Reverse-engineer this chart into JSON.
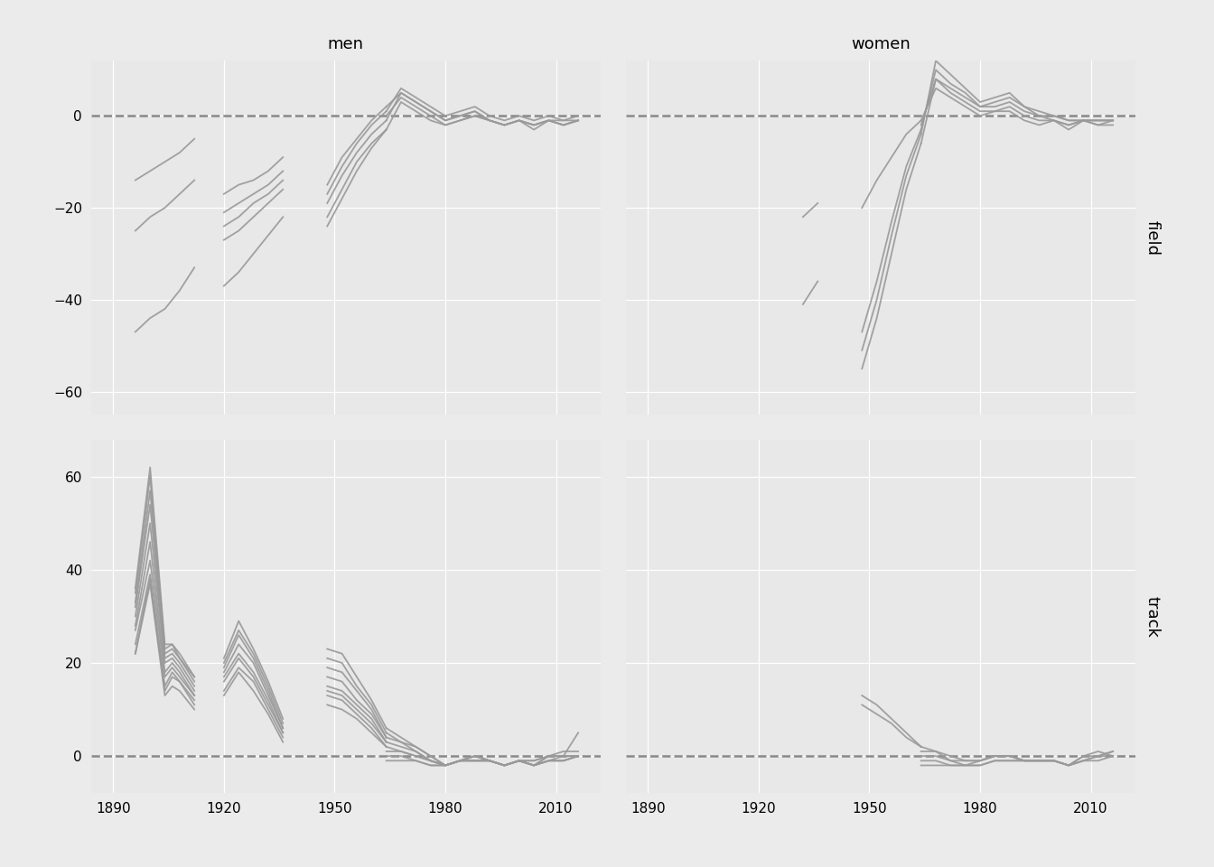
{
  "title_men": "men",
  "title_women": "women",
  "label_field": "field",
  "label_track": "track",
  "x_ticks": [
    1890,
    1920,
    1950,
    1980,
    2010
  ],
  "x_min": 1884,
  "x_max": 2022,
  "field_men_ylim": [
    -65,
    12
  ],
  "field_women_ylim": [
    -65,
    12
  ],
  "track_men_ylim": [
    -8,
    68
  ],
  "track_women_ylim": [
    -8,
    68
  ],
  "bg_color": "#EBEBEB",
  "panel_bg": "#E8E8E8",
  "strip_bg": "#D0D0D0",
  "line_color": "#999999",
  "dashed_color": "#888888",
  "line_width": 1.3,
  "men_field_series": [
    {
      "x": [
        1896,
        1900,
        1904,
        1908,
        1912
      ],
      "y": [
        -47,
        -44,
        -42,
        -38,
        -33
      ]
    },
    {
      "x": [
        1896,
        1900,
        1904,
        1908,
        1912
      ],
      "y": [
        -25,
        -22,
        -20,
        -17,
        -14
      ]
    },
    {
      "x": [
        1896,
        1900,
        1904,
        1908,
        1912
      ],
      "y": [
        -14,
        -12,
        -10,
        -8,
        -5
      ]
    },
    {
      "x": [
        1920,
        1924,
        1928,
        1932,
        1936
      ],
      "y": [
        -37,
        -34,
        -30,
        -26,
        -22
      ]
    },
    {
      "x": [
        1920,
        1924,
        1928,
        1932,
        1936
      ],
      "y": [
        -27,
        -25,
        -22,
        -19,
        -16
      ]
    },
    {
      "x": [
        1920,
        1924,
        1928,
        1932,
        1936
      ],
      "y": [
        -24,
        -22,
        -19,
        -17,
        -14
      ]
    },
    {
      "x": [
        1920,
        1924,
        1928,
        1932,
        1936
      ],
      "y": [
        -21,
        -19,
        -17,
        -15,
        -12
      ]
    },
    {
      "x": [
        1920,
        1924,
        1928,
        1932,
        1936
      ],
      "y": [
        -17,
        -15,
        -14,
        -12,
        -9
      ]
    },
    {
      "x": [
        1948,
        1952,
        1956,
        1960,
        1964
      ],
      "y": [
        -22,
        -16,
        -10,
        -6,
        -3
      ]
    },
    {
      "x": [
        1948,
        1952,
        1956,
        1960,
        1964
      ],
      "y": [
        -19,
        -13,
        -8,
        -4,
        -1
      ]
    },
    {
      "x": [
        1948,
        1952,
        1956,
        1960,
        1964
      ],
      "y": [
        -17,
        -11,
        -6,
        -2,
        1
      ]
    },
    {
      "x": [
        1948,
        1952,
        1956,
        1960,
        1964
      ],
      "y": [
        -15,
        -9,
        -5,
        -1,
        2
      ]
    },
    {
      "x": [
        1948,
        1952,
        1956,
        1960,
        1964
      ],
      "y": [
        -24,
        -18,
        -12,
        -7,
        -3
      ]
    },
    {
      "x": [
        1964,
        1968,
        1972,
        1976,
        1980,
        1984,
        1988,
        1992,
        1996,
        2000,
        2004,
        2008,
        2012,
        2016
      ],
      "y": [
        -3,
        3,
        1,
        -1,
        -2,
        -1,
        0,
        -1,
        -2,
        -1,
        -2,
        -1,
        -2,
        -1
      ]
    },
    {
      "x": [
        1964,
        1968,
        1972,
        1976,
        1980,
        1984,
        1988,
        1992,
        1996,
        2000,
        2004,
        2008,
        2012,
        2016
      ],
      "y": [
        -1,
        5,
        3,
        1,
        -1,
        0,
        1,
        -1,
        -2,
        -1,
        -2,
        -1,
        -2,
        -1
      ]
    },
    {
      "x": [
        1964,
        1968,
        1972,
        1976,
        1980,
        1984,
        1988,
        1992,
        1996,
        2000,
        2004,
        2008,
        2012,
        2016
      ],
      "y": [
        1,
        6,
        4,
        2,
        0,
        1,
        2,
        0,
        -1,
        0,
        -1,
        0,
        -1,
        0
      ]
    },
    {
      "x": [
        1964,
        1968,
        1972,
        1976,
        1980,
        1984,
        1988,
        1992,
        1996,
        2000,
        2004,
        2008,
        2012,
        2016
      ],
      "y": [
        2,
        5,
        3,
        1,
        -1,
        0,
        1,
        -1,
        -2,
        -1,
        -2,
        -1,
        -1,
        -1
      ]
    },
    {
      "x": [
        1964,
        1968,
        1972,
        1976,
        1980,
        1984,
        1988,
        1992,
        1996,
        2000,
        2004,
        2008,
        2012,
        2016
      ],
      "y": [
        0,
        4,
        2,
        0,
        -2,
        -1,
        0,
        -1,
        -2,
        -1,
        -3,
        -1,
        -2,
        -1
      ]
    }
  ],
  "women_field_series": [
    {
      "x": [
        1932,
        1936
      ],
      "y": [
        -22,
        -19
      ]
    },
    {
      "x": [
        1932,
        1936
      ],
      "y": [
        -41,
        -36
      ]
    },
    {
      "x": [
        1948,
        1952,
        1956,
        1960,
        1964
      ],
      "y": [
        -55,
        -44,
        -30,
        -16,
        -6
      ]
    },
    {
      "x": [
        1948,
        1952,
        1956,
        1960,
        1964
      ],
      "y": [
        -51,
        -40,
        -26,
        -13,
        -4
      ]
    },
    {
      "x": [
        1948,
        1952,
        1956,
        1960,
        1964
      ],
      "y": [
        -47,
        -36,
        -23,
        -11,
        -3
      ]
    },
    {
      "x": [
        1948,
        1952,
        1956,
        1960,
        1964
      ],
      "y": [
        -20,
        -14,
        -9,
        -4,
        -1
      ]
    },
    {
      "x": [
        1964,
        1968,
        1972,
        1976,
        1980,
        1984,
        1988,
        1992,
        1996,
        2000,
        2004,
        2008,
        2012,
        2016
      ],
      "y": [
        -6,
        8,
        6,
        4,
        2,
        3,
        4,
        2,
        0,
        0,
        -1,
        -1,
        -1,
        -1
      ]
    },
    {
      "x": [
        1964,
        1968,
        1972,
        1976,
        1980,
        1984,
        1988,
        1992,
        1996,
        2000,
        2004,
        2008,
        2012,
        2016
      ],
      "y": [
        -4,
        12,
        9,
        6,
        3,
        4,
        5,
        2,
        1,
        0,
        -1,
        -1,
        -1,
        -1
      ]
    },
    {
      "x": [
        1964,
        1968,
        1972,
        1976,
        1980,
        1984,
        1988,
        1992,
        1996,
        2000,
        2004,
        2008,
        2012,
        2016
      ],
      "y": [
        -3,
        10,
        7,
        5,
        2,
        2,
        3,
        1,
        0,
        -1,
        -2,
        -1,
        -1,
        -1
      ]
    },
    {
      "x": [
        1964,
        1968,
        1972,
        1976,
        1980,
        1984,
        1988,
        1992,
        1996,
        2000,
        2004,
        2008,
        2012,
        2016
      ],
      "y": [
        -2,
        8,
        5,
        3,
        1,
        1,
        2,
        0,
        -1,
        -1,
        -2,
        -1,
        -2,
        -1
      ]
    },
    {
      "x": [
        1964,
        1968,
        1972,
        1976,
        1980,
        1984,
        1988,
        1992,
        1996,
        2000,
        2004,
        2008,
        2012,
        2016
      ],
      "y": [
        -1,
        6,
        4,
        2,
        0,
        1,
        1,
        -1,
        -2,
        -1,
        -3,
        -1,
        -2,
        -2
      ]
    }
  ],
  "men_track_series": [
    {
      "x": [
        1896,
        1900,
        1904,
        1906,
        1908,
        1912
      ],
      "y": [
        22,
        38,
        14,
        17,
        16,
        11
      ]
    },
    {
      "x": [
        1896,
        1900,
        1904,
        1906,
        1908,
        1912
      ],
      "y": [
        22,
        37,
        13,
        15,
        14,
        10
      ]
    },
    {
      "x": [
        1896,
        1900,
        1904,
        1906,
        1908,
        1912
      ],
      "y": [
        24,
        39,
        15,
        18,
        16,
        12
      ]
    },
    {
      "x": [
        1896,
        1900,
        1904,
        1906,
        1908,
        1912
      ],
      "y": [
        27,
        42,
        17,
        19,
        17,
        13
      ]
    },
    {
      "x": [
        1896,
        1900,
        1904,
        1906,
        1908,
        1912
      ],
      "y": [
        28,
        46,
        18,
        20,
        18,
        13
      ]
    },
    {
      "x": [
        1896,
        1900,
        1904,
        1906,
        1908,
        1912
      ],
      "y": [
        30,
        50,
        20,
        21,
        19,
        14
      ]
    },
    {
      "x": [
        1896,
        1900,
        1904,
        1906,
        1908,
        1912
      ],
      "y": [
        32,
        54,
        21,
        22,
        20,
        15
      ]
    },
    {
      "x": [
        1896,
        1900,
        1904,
        1906,
        1908,
        1912
      ],
      "y": [
        33,
        57,
        22,
        23,
        21,
        16
      ]
    },
    {
      "x": [
        1896,
        1900,
        1904,
        1906,
        1908,
        1912
      ],
      "y": [
        35,
        60,
        23,
        24,
        21,
        17
      ]
    },
    {
      "x": [
        1896,
        1900,
        1904,
        1906,
        1908,
        1912
      ],
      "y": [
        36,
        62,
        24,
        24,
        22,
        17
      ]
    },
    {
      "x": [
        1920,
        1924,
        1928,
        1932,
        1936
      ],
      "y": [
        21,
        29,
        23,
        16,
        8
      ]
    },
    {
      "x": [
        1920,
        1924,
        1928,
        1932,
        1936
      ],
      "y": [
        20,
        27,
        22,
        15,
        7
      ]
    },
    {
      "x": [
        1920,
        1924,
        1928,
        1932,
        1936
      ],
      "y": [
        19,
        26,
        21,
        14,
        6
      ]
    },
    {
      "x": [
        1920,
        1924,
        1928,
        1932,
        1936
      ],
      "y": [
        18,
        24,
        20,
        13,
        6
      ]
    },
    {
      "x": [
        1920,
        1924,
        1928,
        1932,
        1936
      ],
      "y": [
        17,
        22,
        18,
        12,
        5
      ]
    },
    {
      "x": [
        1920,
        1924,
        1928,
        1932,
        1936
      ],
      "y": [
        16,
        21,
        17,
        11,
        5
      ]
    },
    {
      "x": [
        1920,
        1924,
        1928,
        1932,
        1936
      ],
      "y": [
        14,
        19,
        16,
        10,
        4
      ]
    },
    {
      "x": [
        1920,
        1924,
        1928,
        1932,
        1936
      ],
      "y": [
        13,
        18,
        14,
        9,
        3
      ]
    },
    {
      "x": [
        1948,
        1952,
        1956,
        1960,
        1964
      ],
      "y": [
        23,
        22,
        17,
        12,
        6
      ]
    },
    {
      "x": [
        1948,
        1952,
        1956,
        1960,
        1964
      ],
      "y": [
        21,
        20,
        15,
        11,
        5
      ]
    },
    {
      "x": [
        1948,
        1952,
        1956,
        1960,
        1964
      ],
      "y": [
        19,
        18,
        14,
        10,
        4
      ]
    },
    {
      "x": [
        1948,
        1952,
        1956,
        1960,
        1964
      ],
      "y": [
        17,
        16,
        12,
        9,
        4
      ]
    },
    {
      "x": [
        1948,
        1952,
        1956,
        1960,
        1964
      ],
      "y": [
        15,
        14,
        11,
        8,
        3
      ]
    },
    {
      "x": [
        1948,
        1952,
        1956,
        1960,
        1964
      ],
      "y": [
        14,
        13,
        10,
        7,
        3
      ]
    },
    {
      "x": [
        1948,
        1952,
        1956,
        1960,
        1964
      ],
      "y": [
        13,
        12,
        9,
        6,
        2
      ]
    },
    {
      "x": [
        1948,
        1952,
        1956,
        1960,
        1964
      ],
      "y": [
        11,
        10,
        8,
        5,
        2
      ]
    },
    {
      "x": [
        1964,
        1968,
        1972,
        1976,
        1980,
        1984,
        1988,
        1992,
        1996,
        2000,
        2004,
        2008,
        2012,
        2016
      ],
      "y": [
        6,
        4,
        2,
        0,
        -2,
        -1,
        0,
        -1,
        -2,
        -1,
        -1,
        0,
        0,
        5
      ]
    },
    {
      "x": [
        1964,
        1968,
        1972,
        1976,
        1980,
        1984,
        1988,
        1992,
        1996,
        2000,
        2004,
        2008,
        2012,
        2016
      ],
      "y": [
        5,
        3,
        2,
        0,
        -2,
        -1,
        0,
        -1,
        -2,
        -1,
        -2,
        0,
        1,
        1
      ]
    },
    {
      "x": [
        1964,
        1968,
        1972,
        1976,
        1980,
        1984,
        1988,
        1992,
        1996,
        2000,
        2004,
        2008,
        2012,
        2016
      ],
      "y": [
        4,
        3,
        1,
        -1,
        -2,
        -1,
        0,
        -1,
        -2,
        -1,
        -1,
        0,
        0,
        0
      ]
    },
    {
      "x": [
        1964,
        1968,
        1972,
        1976,
        1980,
        1984,
        1988,
        1992,
        1996,
        2000,
        2004,
        2008,
        2012,
        2016
      ],
      "y": [
        3,
        2,
        1,
        -1,
        -2,
        -1,
        0,
        -1,
        -2,
        -1,
        -2,
        0,
        0,
        0
      ]
    },
    {
      "x": [
        1964,
        1968,
        1972,
        1976,
        1980,
        1984,
        1988,
        1992,
        1996,
        2000,
        2004,
        2008,
        2012,
        2016
      ],
      "y": [
        2,
        1,
        0,
        -1,
        -2,
        -1,
        -1,
        -1,
        -2,
        -1,
        -2,
        -1,
        0,
        0
      ]
    },
    {
      "x": [
        1964,
        1968,
        1972,
        1976,
        1980,
        1984,
        1988,
        1992,
        1996,
        2000,
        2004,
        2008,
        2012,
        2016
      ],
      "y": [
        1,
        1,
        0,
        -1,
        -2,
        -1,
        -1,
        -1,
        -2,
        -1,
        -2,
        -1,
        -1,
        0
      ]
    },
    {
      "x": [
        1964,
        1968,
        1972,
        1976,
        1980,
        1984,
        1988,
        1992,
        1996,
        2000,
        2004,
        2008,
        2012,
        2016
      ],
      "y": [
        0,
        0,
        -1,
        -2,
        -2,
        -1,
        -1,
        -1,
        -2,
        -1,
        -2,
        -1,
        -1,
        0
      ]
    },
    {
      "x": [
        1964,
        1968,
        1972,
        1976,
        1980,
        1984,
        1988,
        1992,
        1996,
        2000,
        2004,
        2008,
        2012,
        2016
      ],
      "y": [
        -1,
        -1,
        -1,
        -2,
        -2,
        -1,
        -1,
        -1,
        -2,
        -1,
        -2,
        -1,
        -1,
        0
      ]
    }
  ],
  "women_track_series": [
    {
      "x": [
        1948,
        1952,
        1956,
        1960,
        1964
      ],
      "y": [
        13,
        11,
        8,
        5,
        2
      ]
    },
    {
      "x": [
        1948,
        1952,
        1956,
        1960,
        1964
      ],
      "y": [
        11,
        9,
        7,
        4,
        2
      ]
    },
    {
      "x": [
        1964,
        1968,
        1972,
        1976,
        1980,
        1984,
        1988,
        1992,
        1996,
        2000,
        2004,
        2008,
        2012,
        2016
      ],
      "y": [
        2,
        1,
        0,
        -1,
        -1,
        0,
        0,
        -1,
        -1,
        -1,
        -2,
        0,
        0,
        1
      ]
    },
    {
      "x": [
        1964,
        1968,
        1972,
        1976,
        1980,
        1984,
        1988,
        1992,
        1996,
        2000,
        2004,
        2008,
        2012,
        2016
      ],
      "y": [
        1,
        1,
        -1,
        -1,
        -1,
        0,
        0,
        -1,
        -1,
        -1,
        -2,
        0,
        1,
        0
      ]
    },
    {
      "x": [
        1964,
        1968,
        1972,
        1976,
        1980,
        1984,
        1988,
        1992,
        1996,
        2000,
        2004,
        2008,
        2012,
        2016
      ],
      "y": [
        0,
        0,
        -1,
        -2,
        -1,
        0,
        0,
        -1,
        -1,
        -1,
        -2,
        -1,
        0,
        0
      ]
    },
    {
      "x": [
        1964,
        1968,
        1972,
        1976,
        1980,
        1984,
        1988,
        1992,
        1996,
        2000,
        2004,
        2008,
        2012,
        2016
      ],
      "y": [
        -1,
        -1,
        -2,
        -2,
        -2,
        -1,
        -1,
        -1,
        -1,
        -1,
        -2,
        -1,
        0,
        1
      ]
    },
    {
      "x": [
        1964,
        1968,
        1972,
        1976,
        1980,
        1984,
        1988,
        1992,
        1996,
        2000,
        2004,
        2008,
        2012,
        2016
      ],
      "y": [
        -2,
        -2,
        -2,
        -2,
        -2,
        -1,
        -1,
        -1,
        -1,
        -1,
        -2,
        -1,
        -1,
        0
      ]
    }
  ]
}
